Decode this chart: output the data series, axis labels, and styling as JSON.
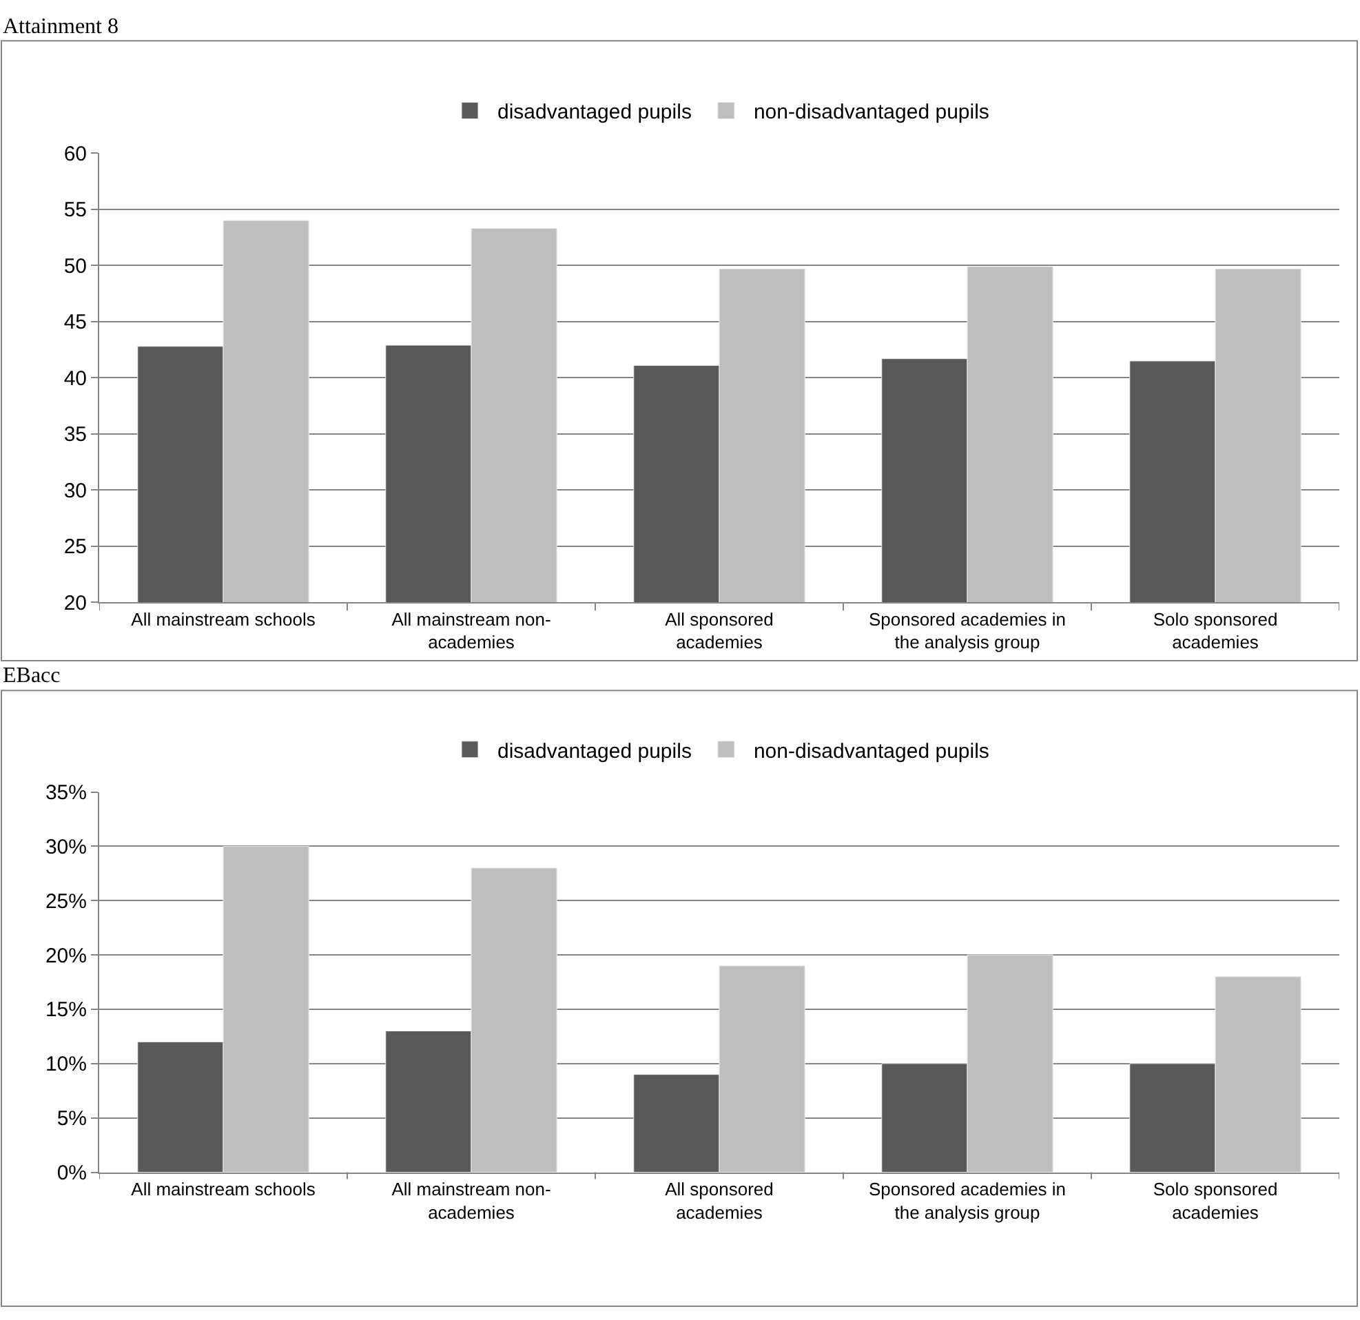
{
  "chart_data": [
    {
      "type": "bar",
      "title": "Attainment 8",
      "categories": [
        "All mainstream schools",
        "All mainstream non-academies",
        "All sponsored academies",
        "Sponsored academies in the analysis group",
        "Solo sponsored academies"
      ],
      "series": [
        {
          "name": "disadvantaged pupils",
          "color": "#595959",
          "values": [
            42.8,
            42.9,
            41.1,
            41.7,
            41.5
          ]
        },
        {
          "name": "non-disadvantaged pupils",
          "color": "#bfbfbf",
          "values": [
            54.0,
            53.3,
            49.7,
            49.9,
            49.7
          ]
        }
      ],
      "ylim": [
        20,
        60
      ],
      "yticks": [
        20,
        25,
        30,
        35,
        40,
        45,
        50,
        55,
        60
      ],
      "grid": "y",
      "legend": "top"
    },
    {
      "type": "bar",
      "title": "EBacc",
      "categories": [
        "All mainstream schools",
        "All mainstream non-academies",
        "All sponsored academies",
        "Sponsored academies in the analysis group",
        "Solo sponsored academies"
      ],
      "series": [
        {
          "name": "disadvantaged pupils",
          "color": "#595959",
          "values": [
            12,
            13,
            9,
            10,
            10
          ]
        },
        {
          "name": "non-disadvantaged pupils",
          "color": "#bfbfbf",
          "values": [
            30,
            28,
            19,
            20,
            18
          ]
        }
      ],
      "ylim": [
        0,
        35
      ],
      "yticks": [
        {
          "value": 0,
          "label": "0%"
        },
        {
          "value": 5,
          "label": "5%"
        },
        {
          "value": 10,
          "label": "10%"
        },
        {
          "value": 15,
          "label": "15%"
        },
        {
          "value": 20,
          "label": "20%"
        },
        {
          "value": 25,
          "label": "25%"
        },
        {
          "value": 30,
          "label": "30%"
        },
        {
          "value": 35,
          "label": "35%"
        }
      ],
      "grid": "y",
      "legend": "top"
    }
  ]
}
